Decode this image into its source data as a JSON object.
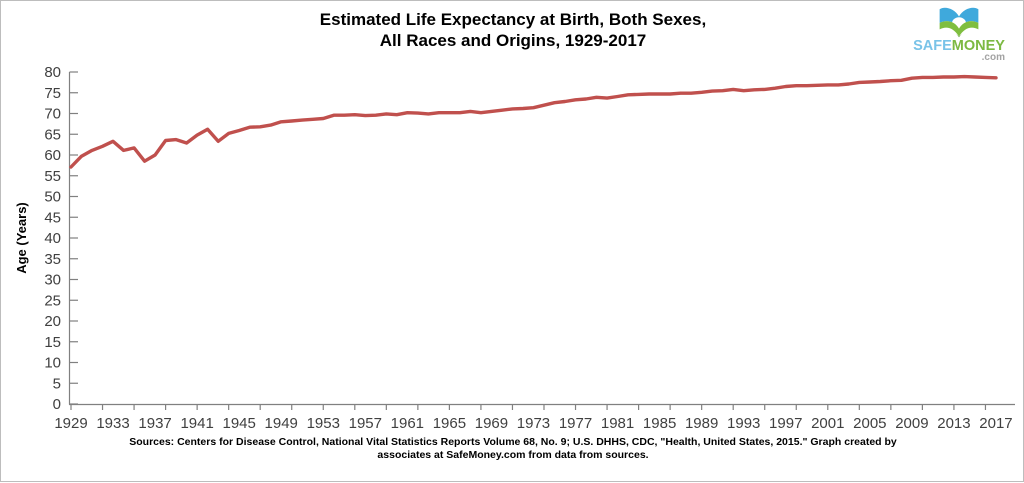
{
  "title": {
    "line1": "Estimated Life Expectancy at Birth, Both Sexes,",
    "line2": "All Races and Origins, 1929-2017"
  },
  "logo": {
    "safe": "SAFE",
    "money": "MONEY",
    "com": ".com",
    "colors": {
      "safe_blue": "#79C3E8",
      "money_green": "#7CB942",
      "icon_blue": "#3FA9DC",
      "icon_green": "#7FBE3F"
    }
  },
  "source": {
    "line1": "Sources: Centers for Disease Control, National Vital Statistics Reports Volume 68, No. 9; U.S. DHHS, CDC, \"Health, United States, 2015.\"  Graph created by",
    "line2": "associates at SafeMoney.com from data from sources."
  },
  "chart_data": {
    "type": "line",
    "title": "Estimated Life Expectancy at Birth, Both Sexes, All Races and Origins, 1929-2017",
    "xlabel": "",
    "ylabel": "Age (Years)",
    "xlim": [
      1929,
      2017
    ],
    "ylim": [
      0,
      80
    ],
    "ytick_step": 5,
    "xtick_step": 4,
    "xtick_minor_step": 3,
    "grid": false,
    "legend": "none",
    "line_color": "#C0504D",
    "axis_color": "#808080",
    "tick_label_color": "#404040",
    "xtick_labels": [
      "1929",
      "1933",
      "1937",
      "1941",
      "1945",
      "1949",
      "1953",
      "1957",
      "1961",
      "1965",
      "1969",
      "1973",
      "1977",
      "1981",
      "1985",
      "1989",
      "1993",
      "1997",
      "2001",
      "2005",
      "2009",
      "2013",
      "2017"
    ],
    "ytick_labels": [
      "0",
      "5",
      "10",
      "15",
      "20",
      "25",
      "30",
      "35",
      "40",
      "45",
      "50",
      "55",
      "60",
      "65",
      "70",
      "75",
      "80"
    ],
    "series": [
      {
        "name": "Life expectancy at birth (years)",
        "x": [
          1929,
          1930,
          1931,
          1932,
          1933,
          1934,
          1935,
          1936,
          1937,
          1938,
          1939,
          1940,
          1941,
          1942,
          1943,
          1944,
          1945,
          1946,
          1947,
          1948,
          1949,
          1950,
          1951,
          1952,
          1953,
          1954,
          1955,
          1956,
          1957,
          1958,
          1959,
          1960,
          1961,
          1962,
          1963,
          1964,
          1965,
          1966,
          1967,
          1968,
          1969,
          1970,
          1971,
          1972,
          1973,
          1974,
          1975,
          1976,
          1977,
          1978,
          1979,
          1980,
          1981,
          1982,
          1983,
          1984,
          1985,
          1986,
          1987,
          1988,
          1989,
          1990,
          1991,
          1992,
          1993,
          1994,
          1995,
          1996,
          1997,
          1998,
          1999,
          2000,
          2001,
          2002,
          2003,
          2004,
          2005,
          2006,
          2007,
          2008,
          2009,
          2010,
          2011,
          2012,
          2013,
          2014,
          2015,
          2016,
          2017
        ],
        "values": [
          57.1,
          59.7,
          61.1,
          62.1,
          63.3,
          61.1,
          61.7,
          58.5,
          60.0,
          63.5,
          63.7,
          62.9,
          64.8,
          66.2,
          63.3,
          65.2,
          65.9,
          66.7,
          66.8,
          67.2,
          68.0,
          68.2,
          68.4,
          68.6,
          68.8,
          69.6,
          69.6,
          69.7,
          69.5,
          69.6,
          69.9,
          69.7,
          70.2,
          70.1,
          69.9,
          70.2,
          70.2,
          70.2,
          70.5,
          70.2,
          70.5,
          70.8,
          71.1,
          71.2,
          71.4,
          72.0,
          72.6,
          72.9,
          73.3,
          73.5,
          73.9,
          73.7,
          74.1,
          74.5,
          74.6,
          74.7,
          74.7,
          74.7,
          74.9,
          74.9,
          75.1,
          75.4,
          75.5,
          75.8,
          75.5,
          75.7,
          75.8,
          76.1,
          76.5,
          76.7,
          76.7,
          76.8,
          76.9,
          76.9,
          77.1,
          77.5,
          77.6,
          77.7,
          77.9,
          78.0,
          78.5,
          78.7,
          78.7,
          78.8,
          78.8,
          78.9,
          78.8,
          78.7,
          78.6
        ]
      }
    ]
  }
}
